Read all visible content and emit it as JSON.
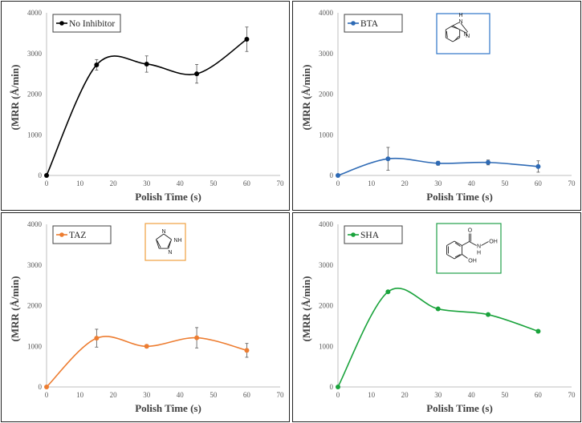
{
  "charts": [
    {
      "type": "line",
      "xlabel": "Polish Time (s)",
      "ylabel": "(MRR (Å/min)",
      "xlim": [
        0,
        70
      ],
      "ylim": [
        0,
        4000
      ],
      "xticks": [
        0,
        10,
        20,
        30,
        40,
        50,
        60,
        70
      ],
      "yticks": [
        0,
        1000,
        2000,
        3000,
        4000
      ],
      "grid": false,
      "legend_position": "top-left",
      "series": [
        {
          "name": "No Inhibitor",
          "color": "#000000",
          "x": [
            0,
            15,
            30,
            45,
            60
          ],
          "y": [
            0,
            2720,
            2740,
            2500,
            3350
          ],
          "error": [
            0,
            130,
            200,
            230,
            300
          ]
        }
      ],
      "structure": null
    },
    {
      "type": "line",
      "xlabel": "Polish Time (s)",
      "ylabel": "(MRR (Å/min)",
      "xlim": [
        0,
        70
      ],
      "ylim": [
        0,
        4000
      ],
      "xticks": [
        0,
        10,
        20,
        30,
        40,
        50,
        60,
        70
      ],
      "yticks": [
        0,
        1000,
        2000,
        3000,
        4000
      ],
      "grid": false,
      "legend_position": "top-left",
      "series": [
        {
          "name": "BTA",
          "color": "#2e6ab5",
          "x": [
            0,
            15,
            30,
            45,
            60
          ],
          "y": [
            0,
            410,
            300,
            320,
            220
          ],
          "error": [
            0,
            280,
            50,
            60,
            140
          ]
        }
      ],
      "structure": {
        "kind": "benzotriazole-structure",
        "border": "#2e75c7",
        "labels": [
          "H",
          "N",
          "N",
          "N"
        ]
      }
    },
    {
      "type": "line",
      "xlabel": "Polish Time (s)",
      "ylabel": "(MRR (Å/min)",
      "xlim": [
        0,
        70
      ],
      "ylim": [
        0,
        4000
      ],
      "xticks": [
        0,
        10,
        20,
        30,
        40,
        50,
        60,
        70
      ],
      "yticks": [
        0,
        1000,
        2000,
        3000,
        4000
      ],
      "grid": false,
      "legend_position": "top-left",
      "series": [
        {
          "name": "TAZ",
          "color": "#ed7d31",
          "x": [
            0,
            15,
            30,
            45,
            60
          ],
          "y": [
            0,
            1200,
            1000,
            1210,
            900
          ],
          "error": [
            0,
            220,
            40,
            250,
            170
          ]
        }
      ],
      "structure": {
        "kind": "triazole-structure",
        "border": "#f0a040",
        "labels": [
          "N",
          "NH",
          "N"
        ]
      }
    },
    {
      "type": "line",
      "xlabel": "Polish Time (s)",
      "ylabel": "(MRR (Å/min)",
      "xlim": [
        0,
        70
      ],
      "ylim": [
        0,
        4000
      ],
      "xticks": [
        0,
        10,
        20,
        30,
        40,
        50,
        60,
        70
      ],
      "yticks": [
        0,
        1000,
        2000,
        3000,
        4000
      ],
      "grid": false,
      "legend_position": "top-left",
      "series": [
        {
          "name": "SHA",
          "color": "#1aa33c",
          "x": [
            0,
            15,
            30,
            45,
            60
          ],
          "y": [
            0,
            2340,
            1920,
            1780,
            1370
          ],
          "error": [
            0,
            30,
            30,
            30,
            30
          ]
        }
      ],
      "structure": {
        "kind": "salicylhydroxamic-acid-structure",
        "border": "#22a04a",
        "labels": [
          "O",
          "N",
          "OH",
          "H",
          "OH"
        ]
      }
    }
  ]
}
